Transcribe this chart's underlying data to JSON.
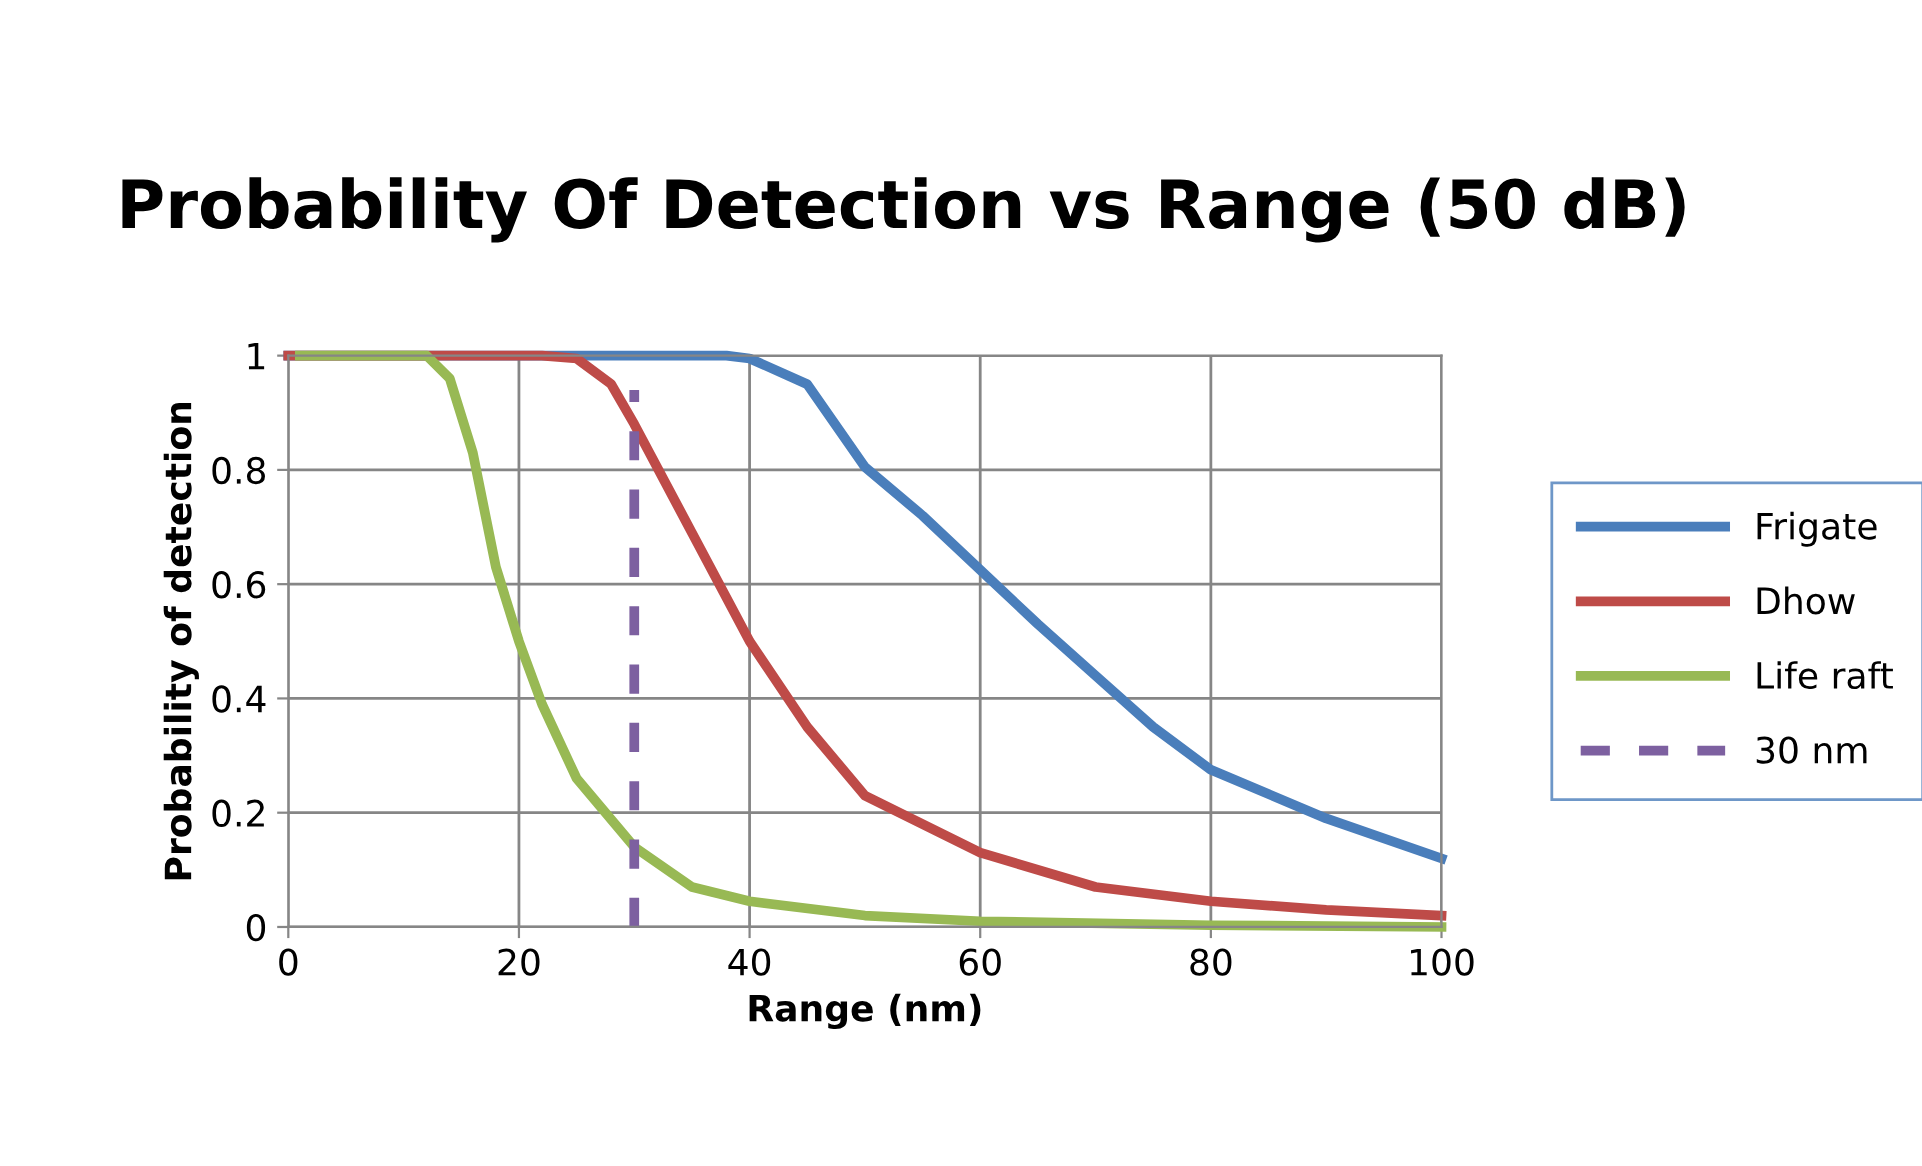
{
  "chart_data": {
    "type": "line",
    "title": "Probability Of Detection vs Range (50 dB)",
    "xlabel": "Range (nm)",
    "ylabel": "Probability of detection",
    "xlim": [
      0,
      100
    ],
    "xticks": [
      0,
      20,
      40,
      60,
      80,
      100
    ],
    "ylim": [
      0,
      1
    ],
    "yticks": [
      0,
      0.2,
      0.4,
      0.6,
      0.8,
      1
    ],
    "grid": true,
    "legend": "right",
    "marker": "none",
    "series": [
      {
        "name": "Frigate",
        "color": "#4a7ebb",
        "line_style": "solid",
        "x": [
          0,
          20,
          30,
          38,
          40,
          45,
          50,
          55,
          60,
          65,
          70,
          75,
          80,
          90,
          100
        ],
        "values": [
          1,
          1,
          1,
          1,
          0.995,
          0.95,
          0.805,
          0.72,
          0.625,
          0.53,
          0.44,
          0.35,
          0.275,
          0.19,
          0.12
        ]
      },
      {
        "name": "Dhow",
        "color": "#be4b48",
        "line_style": "solid",
        "x": [
          0,
          20,
          22,
          25,
          28,
          30,
          35,
          40,
          45,
          50,
          60,
          70,
          80,
          90,
          100
        ],
        "values": [
          1,
          1,
          1,
          0.995,
          0.95,
          0.88,
          0.69,
          0.5,
          0.35,
          0.23,
          0.13,
          0.07,
          0.045,
          0.03,
          0.02
        ]
      },
      {
        "name": "Life raft",
        "color": "#98b954",
        "line_style": "solid",
        "x": [
          1,
          10,
          12,
          14,
          16,
          18,
          20,
          22,
          25,
          30,
          35,
          40,
          50,
          60,
          80,
          100
        ],
        "values": [
          1,
          1,
          1,
          0.96,
          0.83,
          0.63,
          0.5,
          0.39,
          0.26,
          0.14,
          0.07,
          0.045,
          0.02,
          0.01,
          0.003,
          0
        ]
      },
      {
        "name": "30 nm",
        "color": "#7d60a0",
        "line_style": "dashed",
        "x": [
          30,
          30
        ],
        "values": [
          0,
          0.94
        ]
      }
    ]
  }
}
